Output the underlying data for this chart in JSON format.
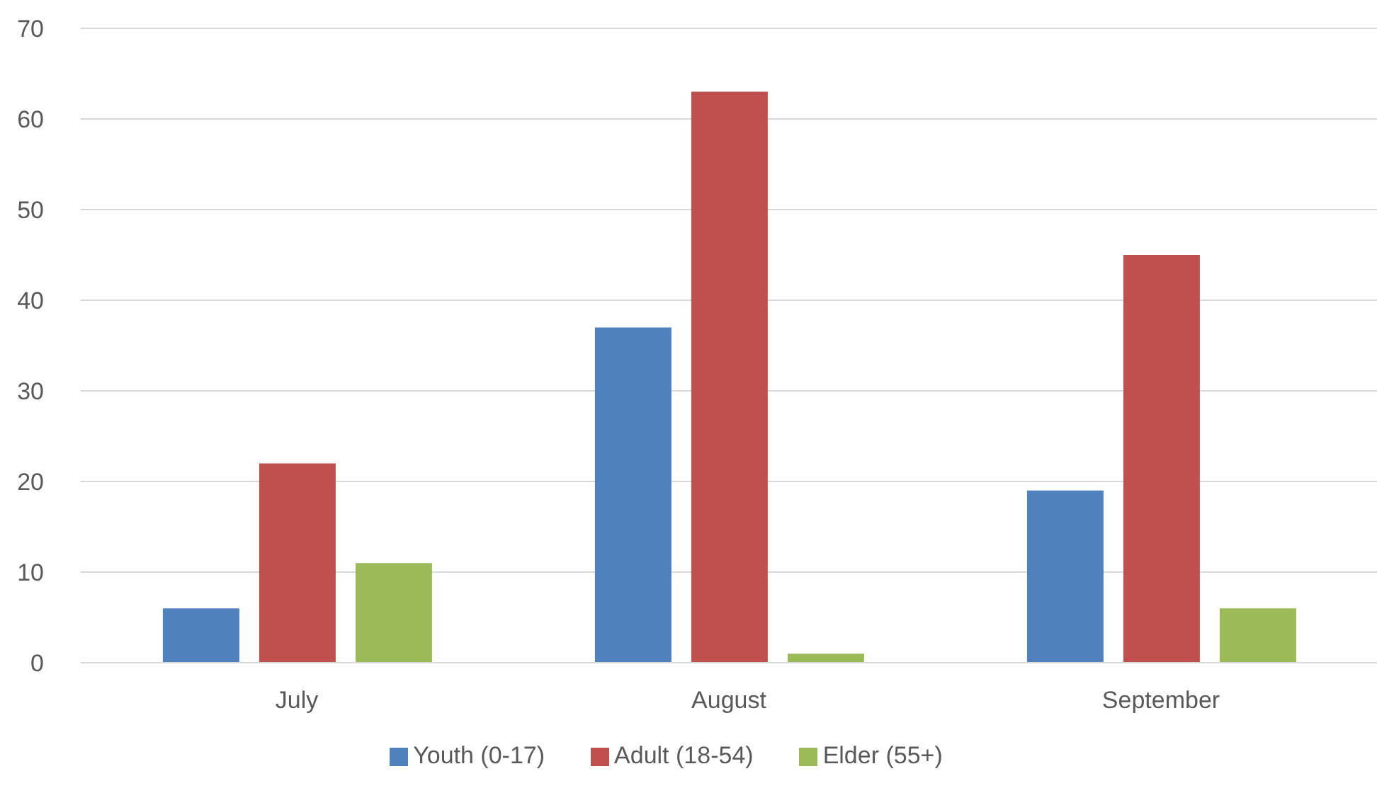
{
  "chart_data": {
    "type": "bar",
    "categories": [
      "July",
      "August",
      "September"
    ],
    "series": [
      {
        "name": "Youth (0-17)",
        "color": "#4f81bd",
        "values": [
          6,
          37,
          19
        ]
      },
      {
        "name": "Adult (18-54)",
        "color": "#c0504d",
        "values": [
          22,
          63,
          45
        ]
      },
      {
        "name": "Elder (55+)",
        "color": "#9bbb59",
        "values": [
          11,
          1,
          6
        ]
      }
    ],
    "ylim": [
      0,
      70
    ],
    "yticks": [
      0,
      10,
      20,
      30,
      40,
      50,
      60,
      70
    ],
    "grid": "y",
    "legend": "bottom"
  }
}
